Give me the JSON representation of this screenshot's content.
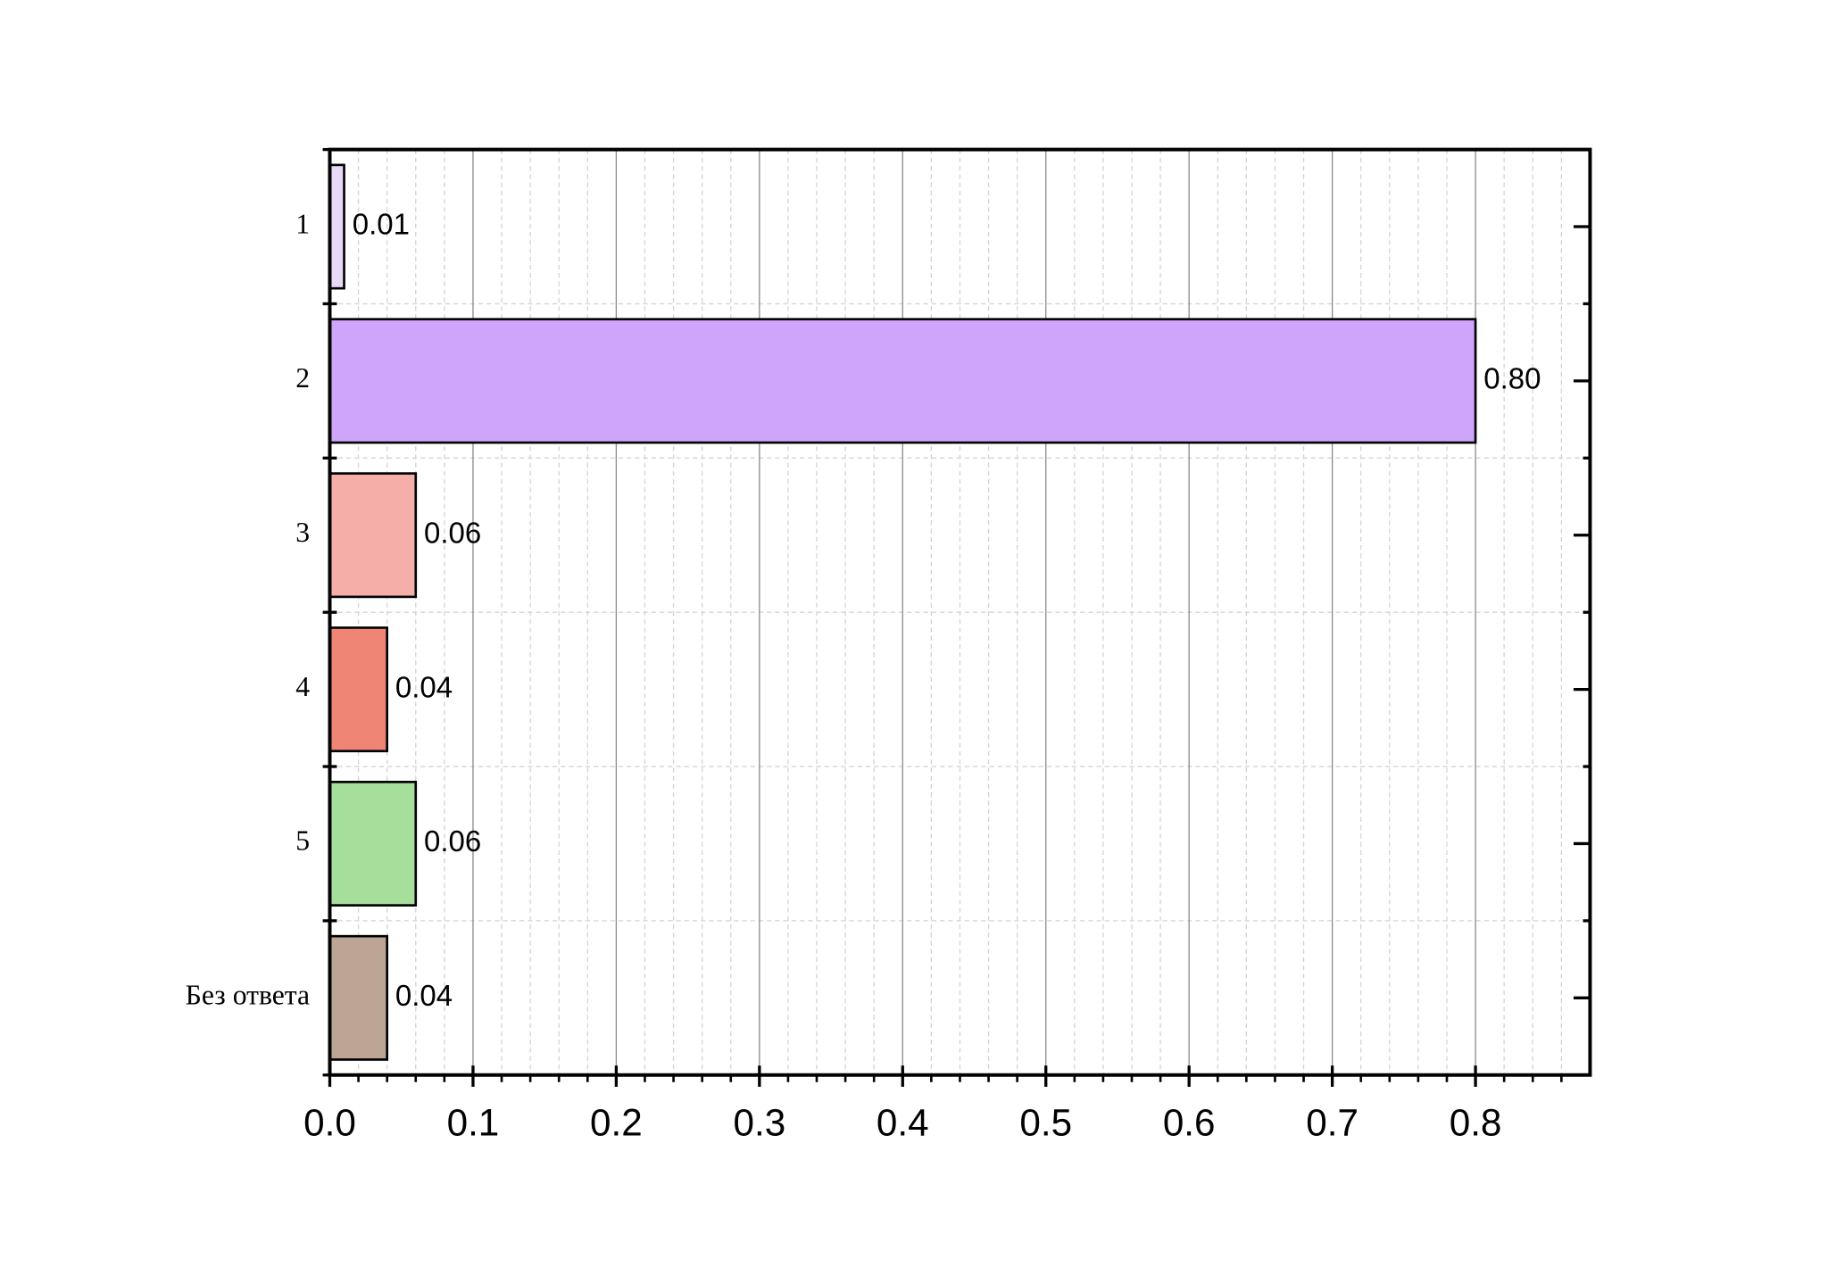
{
  "chart_data": {
    "type": "barh",
    "categories": [
      "1",
      "2",
      "3",
      "4",
      "5",
      "Без ответа"
    ],
    "values": [
      0.01,
      0.8,
      0.06,
      0.04,
      0.06,
      0.04
    ],
    "value_labels": [
      "0.01",
      "0.80",
      "0.06",
      "0.04",
      "0.06",
      "0.04"
    ],
    "colors": [
      "#e8daf6",
      "#cfa5fc",
      "#f6aea8",
      "#ef8675",
      "#a6de9b",
      "#bca595"
    ],
    "xlim": [
      0,
      0.88
    ],
    "xticks": [
      {
        "value": 0,
        "label": "0.0"
      },
      0.1,
      0.2,
      0.3,
      0.4,
      0.5,
      0.6,
      0.7,
      0.8
    ],
    "xminorticks": [
      0.02,
      0.04,
      0.06,
      0.08,
      0.12,
      0.14,
      0.16,
      0.18,
      0.22,
      0.24,
      0.26,
      0.28,
      0.32,
      0.34,
      0.36,
      0.38,
      0.42,
      0.44,
      0.46,
      0.48,
      0.52,
      0.54,
      0.56,
      0.58,
      0.62,
      0.64,
      0.66,
      0.68,
      0.72,
      0.74,
      0.76,
      0.78,
      0.82,
      0.84,
      0.86
    ],
    "grid": true
  }
}
